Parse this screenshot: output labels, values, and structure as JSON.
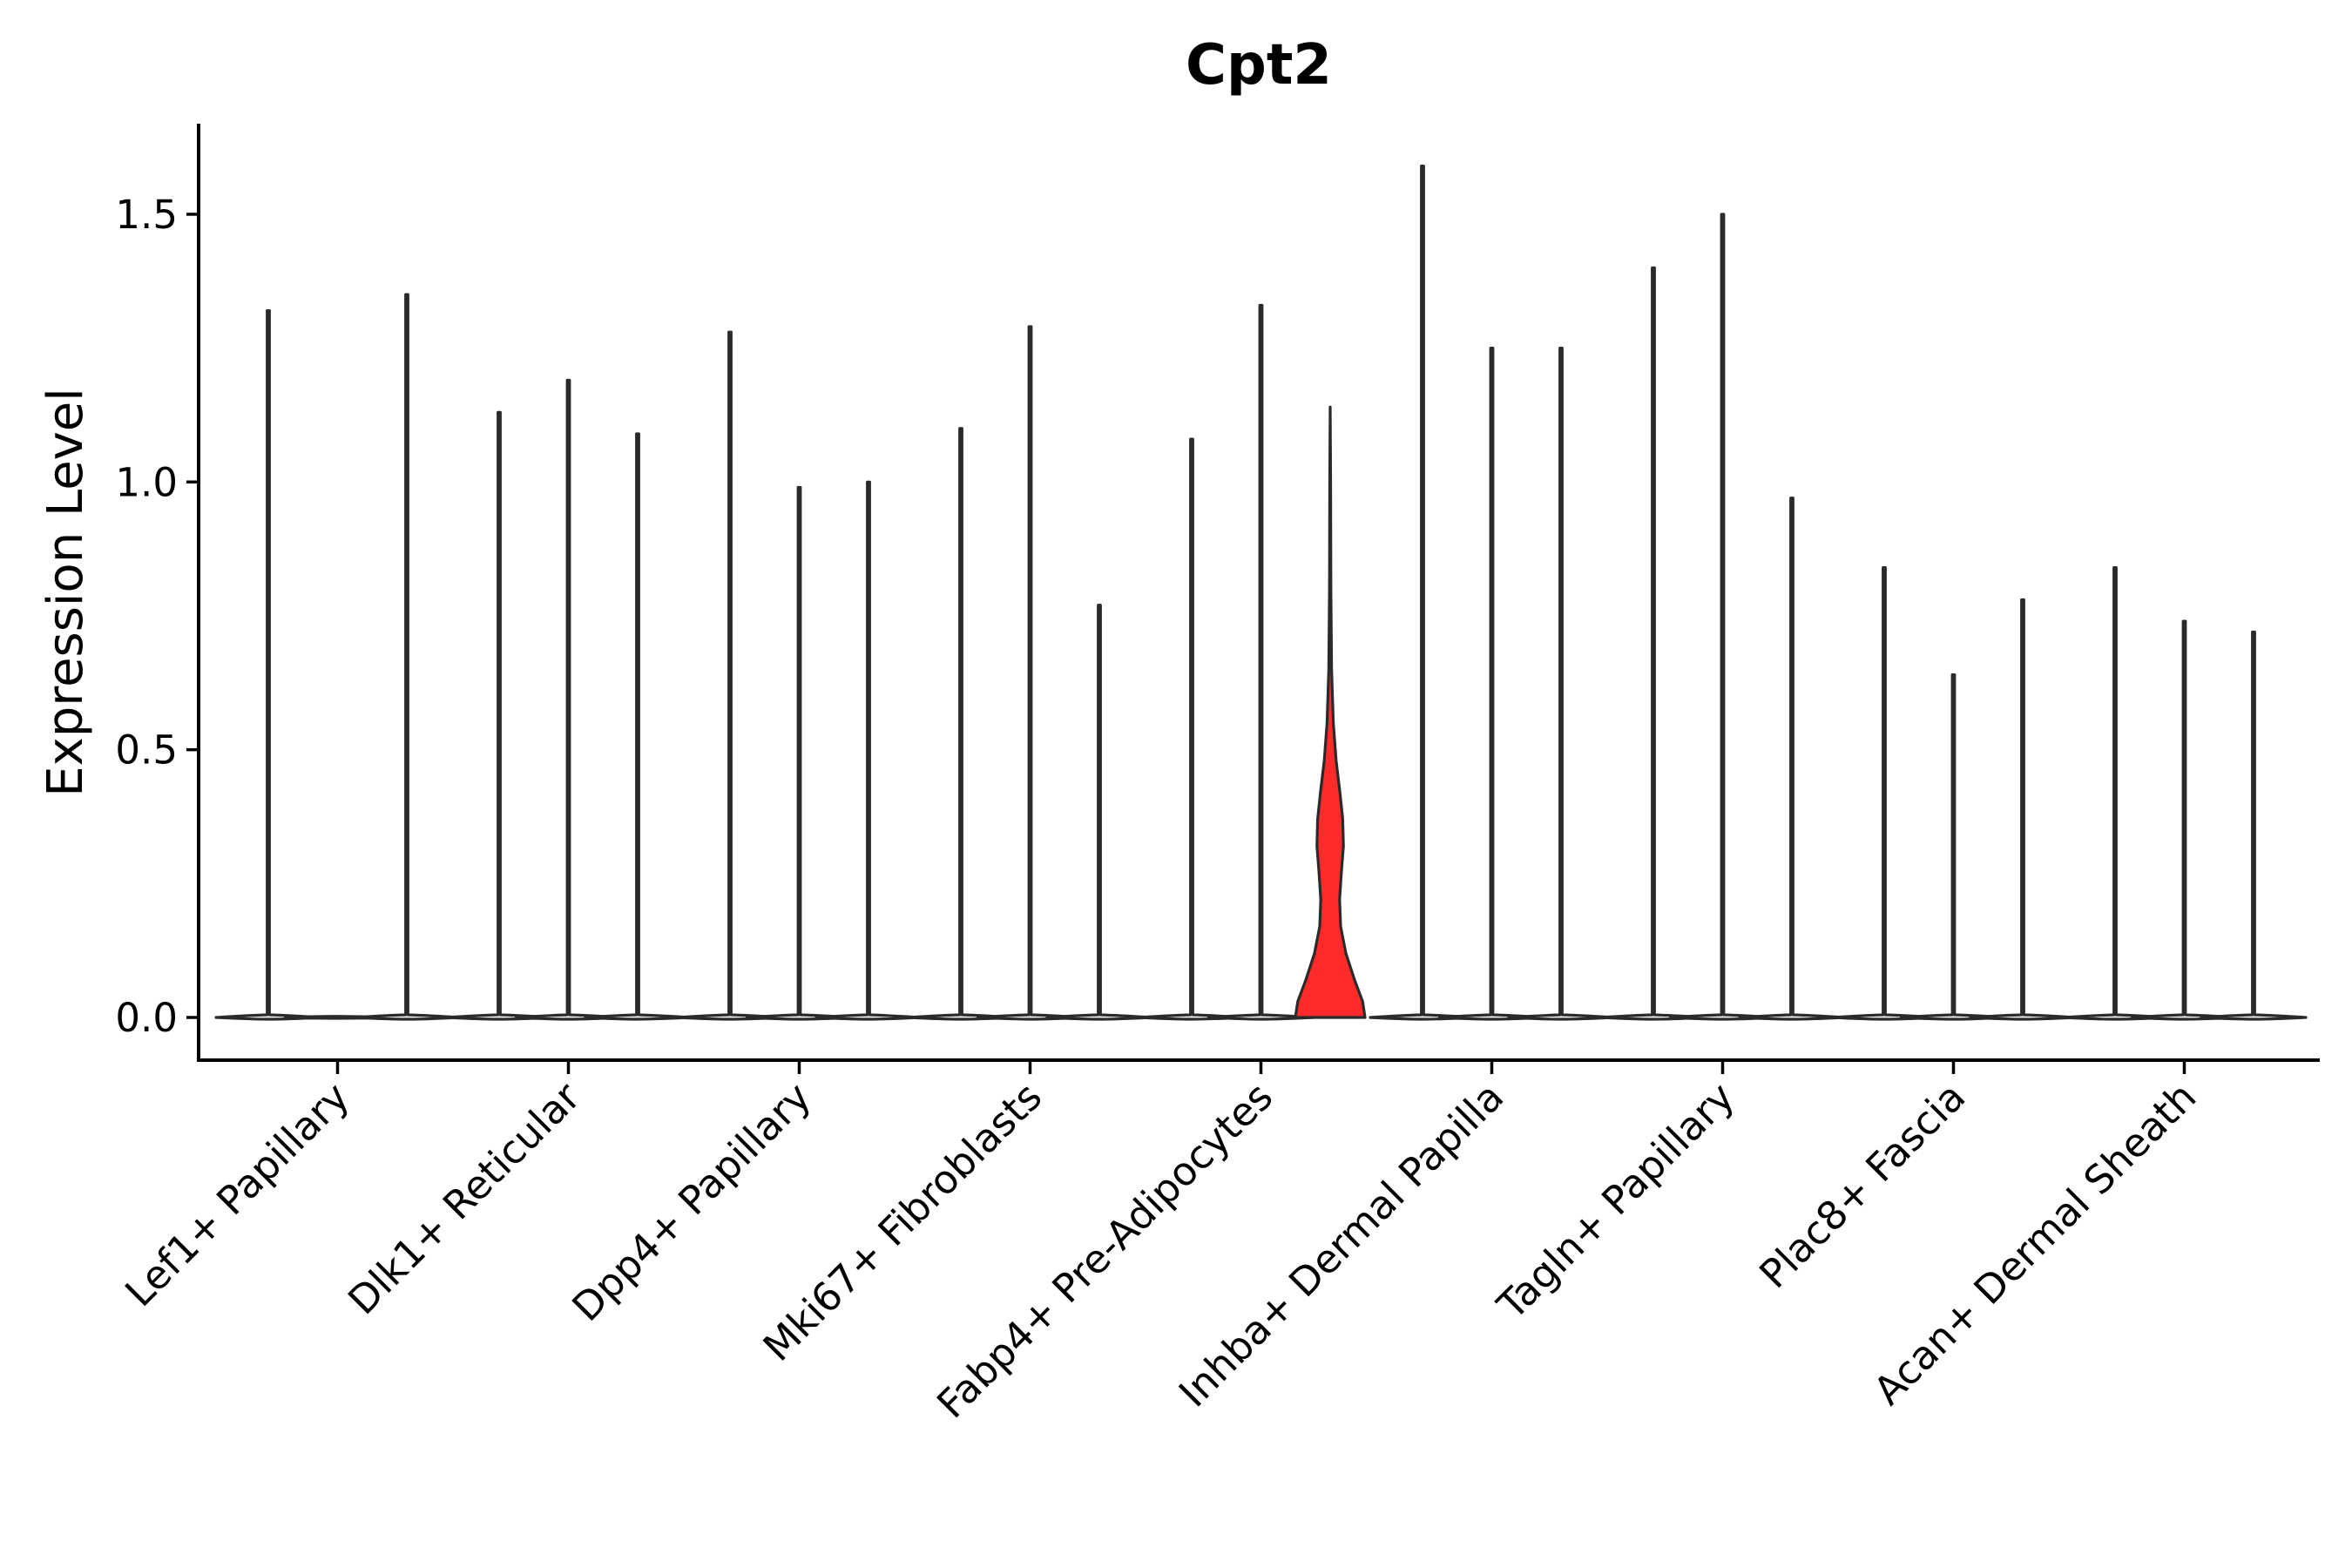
{
  "chart_data": {
    "type": "violin",
    "title": "Cpt2",
    "xlabel": "",
    "ylabel": "Expression Level",
    "ylim": [
      -0.08,
      1.68
    ],
    "yticks": [
      0.0,
      0.5,
      1.0,
      1.5
    ],
    "ytick_labels": [
      "0.0",
      "0.5",
      "1.0",
      "1.5"
    ],
    "grid": false,
    "legend": "none",
    "categories": [
      "Lef1+ Papillary",
      "Dlk1+ Reticular",
      "Dpp4+ Papillary",
      "Mki67+ Fibroblasts",
      "Fabp4+ Pre-Adipocytes",
      "Inhba+ Dermal Papilla",
      "Tagln+ Papillary",
      "Plac8+ Fascia",
      "Acan+ Dermal Sheath"
    ],
    "groups_per_category": 3,
    "violins": [
      {
        "category": "Lef1+ Papillary",
        "group": 1,
        "max": 1.32,
        "color": "#f8f8f8"
      },
      {
        "category": "Lef1+ Papillary",
        "group": 2,
        "max": 0.0,
        "color": "#f8f8f8"
      },
      {
        "category": "Lef1+ Papillary",
        "group": 3,
        "max": 1.35,
        "color": "#f8f8f8"
      },
      {
        "category": "Dlk1+ Reticular",
        "group": 1,
        "max": 1.13,
        "color": "#f8f8f8"
      },
      {
        "category": "Dlk1+ Reticular",
        "group": 2,
        "max": 1.19,
        "color": "#f8f8f8"
      },
      {
        "category": "Dlk1+ Reticular",
        "group": 3,
        "max": 1.09,
        "color": "#f8f8f8"
      },
      {
        "category": "Dpp4+ Papillary",
        "group": 1,
        "max": 1.28,
        "color": "#f8f8f8"
      },
      {
        "category": "Dpp4+ Papillary",
        "group": 2,
        "max": 0.99,
        "color": "#f8f8f8"
      },
      {
        "category": "Dpp4+ Papillary",
        "group": 3,
        "max": 1.0,
        "color": "#f8f8f8"
      },
      {
        "category": "Mki67+ Fibroblasts",
        "group": 1,
        "max": 1.1,
        "color": "#f8f8f8"
      },
      {
        "category": "Mki67+ Fibroblasts",
        "group": 2,
        "max": 1.29,
        "color": "#f8f8f8"
      },
      {
        "category": "Mki67+ Fibroblasts",
        "group": 3,
        "max": 0.77,
        "color": "#f8f8f8"
      },
      {
        "category": "Fabp4+ Pre-Adipocytes",
        "group": 1,
        "max": 1.08,
        "color": "#f8f8f8"
      },
      {
        "category": "Fabp4+ Pre-Adipocytes",
        "group": 2,
        "max": 1.33,
        "color": "#f8f8f8"
      },
      {
        "category": "Fabp4+ Pre-Adipocytes",
        "group": 3,
        "max": 1.14,
        "color": "#ff2a2a",
        "expanded": true
      },
      {
        "category": "Inhba+ Dermal Papilla",
        "group": 1,
        "max": 1.59,
        "color": "#f8f8f8"
      },
      {
        "category": "Inhba+ Dermal Papilla",
        "group": 2,
        "max": 1.25,
        "color": "#f8f8f8"
      },
      {
        "category": "Inhba+ Dermal Papilla",
        "group": 3,
        "max": 1.25,
        "color": "#f8f8f8"
      },
      {
        "category": "Tagln+ Papillary",
        "group": 1,
        "max": 1.4,
        "color": "#f8f8f8"
      },
      {
        "category": "Tagln+ Papillary",
        "group": 2,
        "max": 1.5,
        "color": "#f8f8f8"
      },
      {
        "category": "Tagln+ Papillary",
        "group": 3,
        "max": 0.97,
        "color": "#f8f8f8"
      },
      {
        "category": "Plac8+ Fascia",
        "group": 1,
        "max": 0.84,
        "color": "#f8f8f8"
      },
      {
        "category": "Plac8+ Fascia",
        "group": 2,
        "max": 0.64,
        "color": "#f8f8f8"
      },
      {
        "category": "Plac8+ Fascia",
        "group": 3,
        "max": 0.78,
        "color": "#f8f8f8"
      },
      {
        "category": "Acan+ Dermal Sheath",
        "group": 1,
        "max": 0.84,
        "color": "#f8f8f8"
      },
      {
        "category": "Acan+ Dermal Sheath",
        "group": 2,
        "max": 0.74,
        "color": "#f8f8f8"
      },
      {
        "category": "Acan+ Dermal Sheath",
        "group": 3,
        "max": 0.72,
        "color": "#f8f8f8"
      }
    ],
    "highlight_density": [
      {
        "y": 0.0,
        "d": 1.0
      },
      {
        "y": 0.03,
        "d": 0.93
      },
      {
        "y": 0.07,
        "d": 0.7
      },
      {
        "y": 0.12,
        "d": 0.45
      },
      {
        "y": 0.17,
        "d": 0.3
      },
      {
        "y": 0.22,
        "d": 0.27
      },
      {
        "y": 0.27,
        "d": 0.32
      },
      {
        "y": 0.32,
        "d": 0.38
      },
      {
        "y": 0.37,
        "d": 0.36
      },
      {
        "y": 0.42,
        "d": 0.28
      },
      {
        "y": 0.48,
        "d": 0.17
      },
      {
        "y": 0.55,
        "d": 0.09
      },
      {
        "y": 0.65,
        "d": 0.04
      },
      {
        "y": 0.8,
        "d": 0.02
      },
      {
        "y": 1.0,
        "d": 0.012
      },
      {
        "y": 1.14,
        "d": 0.0
      }
    ]
  }
}
